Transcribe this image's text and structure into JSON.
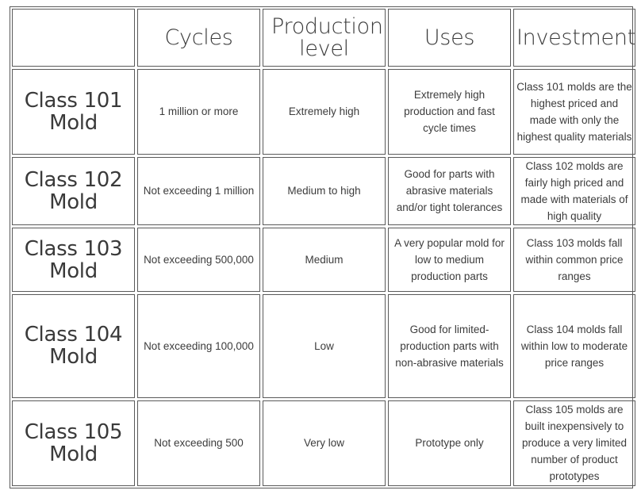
{
  "table": {
    "headers": [
      "",
      "Cycles",
      "Production level",
      "Uses",
      "Investment"
    ],
    "rows": [
      {
        "label": "Class 101 Mold",
        "cycles": "1 million or more",
        "production": "Extremely high",
        "uses": "Extremely high production and fast cycle times",
        "investment": "Class 101 molds are the highest priced and made with only the highest quality materials"
      },
      {
        "label": "Class 102 Mold",
        "cycles": "Not exceeding 1 million",
        "production": "Medium to high",
        "uses": "Good for parts with abrasive materials and/or tight tolerances",
        "investment": "Class 102 molds are fairly high priced and made with materials of high quality"
      },
      {
        "label": "Class 103 Mold",
        "cycles": "Not exceeding 500,000",
        "production": "Medium",
        "uses": "A very popular mold for low to medium production parts",
        "investment": "Class 103 molds fall within common price ranges"
      },
      {
        "label": "Class 104 Mold",
        "cycles": "Not exceeding 100,000",
        "production": "Low",
        "uses": "Good for limited-production parts with non-abrasive materials",
        "investment": "Class 104 molds fall within low to moderate price ranges"
      },
      {
        "label": "Class 105 Mold",
        "cycles": "Not exceeding 500",
        "production": "Very low",
        "uses": "Prototype only",
        "investment": "Class 105 molds are built inexpensively to produce a very limited number of product prototypes"
      }
    ]
  }
}
